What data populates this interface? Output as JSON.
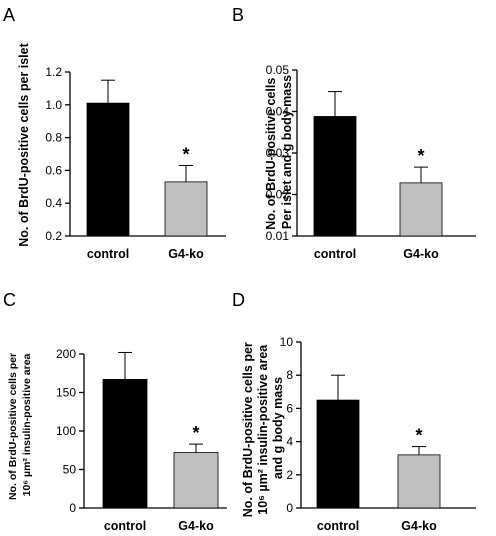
{
  "colors": {
    "control": "#000000",
    "g4ko": "#c0c0c0",
    "axis": "#000000"
  },
  "chart_data": [
    {
      "type": "bar",
      "panel": "A",
      "categories": [
        "control",
        "G4-ko"
      ],
      "values": [
        1.01,
        0.53
      ],
      "errors": [
        0.14,
        0.1
      ],
      "significance": [
        "",
        "*"
      ],
      "ylabel_lines": [
        "No. of BrdU-positive cells per islet"
      ],
      "ylim": [
        0.2,
        1.2
      ],
      "yticks": [
        0.2,
        0.4,
        0.6,
        0.8,
        1.0,
        1.2
      ],
      "ytick_labels": [
        "0.2",
        "0.4",
        "0.6",
        "0.8",
        "1.0",
        "1.2"
      ]
    },
    {
      "type": "bar",
      "panel": "B",
      "categories": [
        "control",
        "G4-ko"
      ],
      "values": [
        0.0388,
        0.0228
      ],
      "errors": [
        0.006,
        0.0038
      ],
      "significance": [
        "",
        "*"
      ],
      "ylabel_lines": [
        "No. of BrdU-positive cells",
        "Per islet and g body mass"
      ],
      "ylim": [
        0.01,
        0.05
      ],
      "yticks": [
        0.01,
        0.02,
        0.03,
        0.04,
        0.05
      ],
      "ytick_labels": [
        "0.01",
        "0.02",
        "0.03",
        "0.04",
        "0.05"
      ]
    },
    {
      "type": "bar",
      "panel": "C",
      "categories": [
        "control",
        "G4-ko"
      ],
      "values": [
        167,
        72
      ],
      "errors": [
        35,
        11
      ],
      "significance": [
        "",
        "*"
      ],
      "ylabel_lines": [
        "No. of BrdU-positive cells per",
        "10⁶ µm²  insulin-positive area"
      ],
      "ylim": [
        0,
        200
      ],
      "yticks": [
        0,
        50,
        100,
        150,
        200
      ],
      "ytick_labels": [
        "0",
        "50",
        "100",
        "150",
        "200"
      ]
    },
    {
      "type": "bar",
      "panel": "D",
      "categories": [
        "control",
        "G4-ko"
      ],
      "values": [
        6.5,
        3.2
      ],
      "errors": [
        1.5,
        0.5
      ],
      "significance": [
        "",
        "*"
      ],
      "ylabel_lines": [
        "No. of BrdU-positive cells per",
        "10⁶ µm²  insulin-positive area",
        "and g body mass"
      ],
      "ylim": [
        0,
        10
      ],
      "yticks": [
        0,
        2,
        4,
        6,
        8,
        10
      ],
      "ytick_labels": [
        "0",
        "2",
        "4",
        "6",
        "8",
        "10"
      ]
    }
  ]
}
